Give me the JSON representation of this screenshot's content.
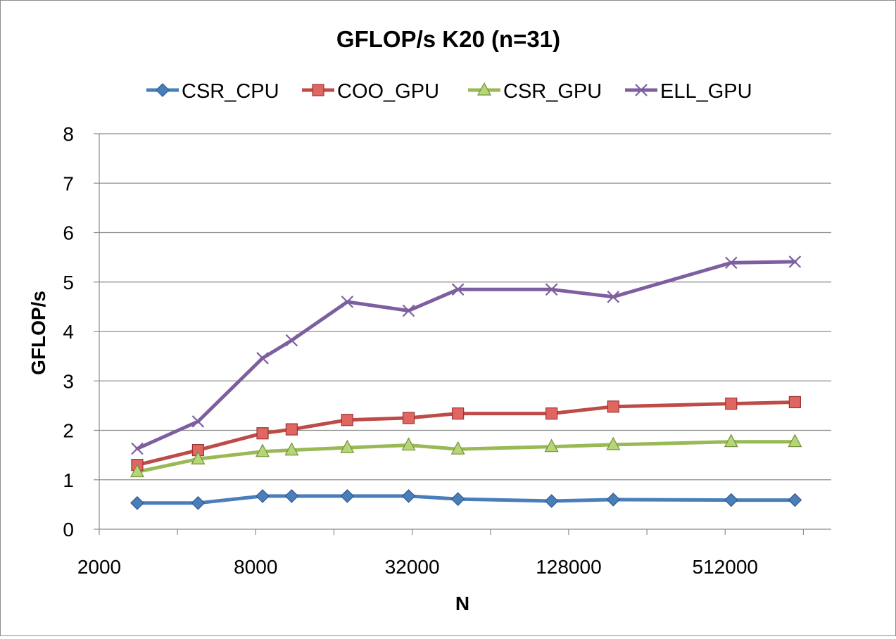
{
  "chart_data": {
    "type": "line",
    "title": "GFLOP/s K20 (n=31)",
    "xlabel": "N",
    "ylabel": "GFLOP/s",
    "x_scale": "log2",
    "xlim": [
      2000,
      1310720
    ],
    "ylim": [
      0,
      8
    ],
    "yticks": [
      0,
      1,
      2,
      3,
      4,
      5,
      6,
      7,
      8
    ],
    "x_tick_labels": [
      "2000",
      "8000",
      "32000",
      "128000",
      "512000"
    ],
    "x_tick_values": [
      2000,
      8000,
      32000,
      128000,
      512000
    ],
    "grid": "horizontal",
    "legend_position": "top",
    "x": [
      2800,
      4800,
      8500,
      11000,
      18000,
      31000,
      48000,
      110000,
      190000,
      540000,
      950000
    ],
    "series": [
      {
        "name": "CSR_CPU",
        "color": "#4a7ebb",
        "marker": "diamond",
        "values": [
          0.53,
          0.53,
          0.67,
          0.67,
          0.67,
          0.67,
          0.61,
          0.57,
          0.6,
          0.59,
          0.59
        ]
      },
      {
        "name": "COO_GPU",
        "color": "#be4b48",
        "marker": "square",
        "values": [
          1.3,
          1.6,
          1.94,
          2.02,
          2.21,
          2.25,
          2.34,
          2.34,
          2.48,
          2.54,
          2.57
        ]
      },
      {
        "name": "CSR_GPU",
        "color": "#98b954",
        "marker": "triangle",
        "values": [
          1.16,
          1.42,
          1.57,
          1.6,
          1.65,
          1.7,
          1.62,
          1.67,
          1.71,
          1.77,
          1.77
        ]
      },
      {
        "name": "ELL_GPU",
        "color": "#7d5fa0",
        "marker": "x",
        "values": [
          1.63,
          2.18,
          3.46,
          3.82,
          4.6,
          4.42,
          4.85,
          4.85,
          4.7,
          5.39,
          5.41
        ]
      }
    ]
  }
}
